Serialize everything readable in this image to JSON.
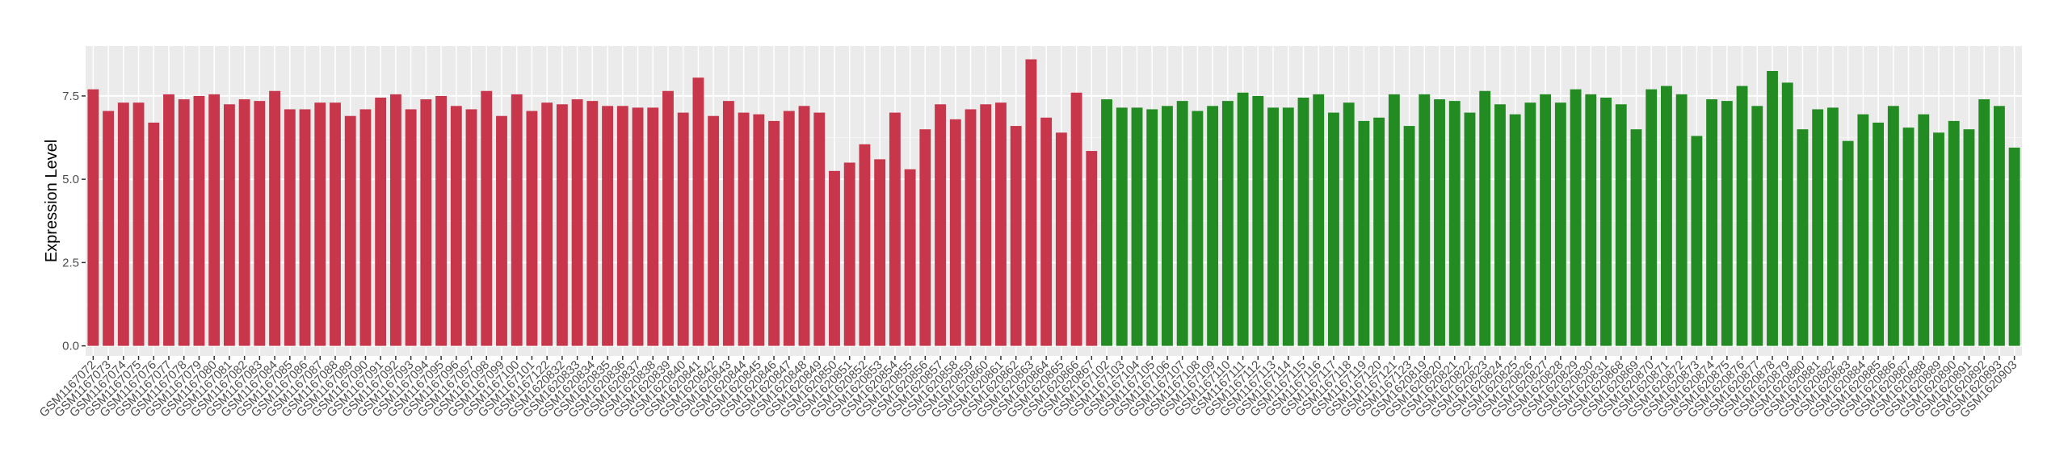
{
  "chart_data": {
    "type": "bar",
    "y_label": "Expression Level",
    "categories": [
      "GSM1167072",
      "GSM1167073",
      "GSM1167074",
      "GSM1167075",
      "GSM1167076",
      "GSM1167077",
      "GSM1167078",
      "GSM1167079",
      "GSM1167080",
      "GSM1167081",
      "GSM1167082",
      "GSM1167083",
      "GSM1167084",
      "GSM1167085",
      "GSM1167086",
      "GSM1167087",
      "GSM1167088",
      "GSM1167089",
      "GSM1167090",
      "GSM1167091",
      "GSM1167092",
      "GSM1167093",
      "GSM1167094",
      "GSM1167095",
      "GSM1167096",
      "GSM1167097",
      "GSM1167098",
      "GSM1167099",
      "GSM1167100",
      "GSM1167101",
      "GSM1167122",
      "GSM1620832",
      "GSM1620833",
      "GSM1620834",
      "GSM1620835",
      "GSM1620836",
      "GSM1620837",
      "GSM1620838",
      "GSM1620839",
      "GSM1620840",
      "GSM1620841",
      "GSM1620842",
      "GSM1620843",
      "GSM1620844",
      "GSM1620845",
      "GSM1620846",
      "GSM1620847",
      "GSM1620848",
      "GSM1620849",
      "GSM1620850",
      "GSM1620851",
      "GSM1620852",
      "GSM1620853",
      "GSM1620854",
      "GSM1620855",
      "GSM1620856",
      "GSM1620857",
      "GSM1620858",
      "GSM1620859",
      "GSM1620860",
      "GSM1620861",
      "GSM1620862",
      "GSM1620863",
      "GSM1620864",
      "GSM1620865",
      "GSM1620866",
      "GSM1620867",
      "GSM1167102",
      "GSM1167103",
      "GSM1167104",
      "GSM1167105",
      "GSM1167106",
      "GSM1167107",
      "GSM1167108",
      "GSM1167109",
      "GSM1167110",
      "GSM1167111",
      "GSM1167112",
      "GSM1167113",
      "GSM1167114",
      "GSM1167115",
      "GSM1167116",
      "GSM1167117",
      "GSM1167118",
      "GSM1167119",
      "GSM1167120",
      "GSM1167121",
      "GSM1167123",
      "GSM1620819",
      "GSM1620820",
      "GSM1620821",
      "GSM1620822",
      "GSM1620823",
      "GSM1620824",
      "GSM1620825",
      "GSM1620826",
      "GSM1620827",
      "GSM1620828",
      "GSM1620829",
      "GSM1620830",
      "GSM1620831",
      "GSM1620868",
      "GSM1620869",
      "GSM1620870",
      "GSM1620871",
      "GSM1620872",
      "GSM1620873",
      "GSM1620874",
      "GSM1620875",
      "GSM1620876",
      "GSM1620877",
      "GSM1620878",
      "GSM1620879",
      "GSM1620880",
      "GSM1620881",
      "GSM1620882",
      "GSM1620883",
      "GSM1620884",
      "GSM1620885",
      "GSM1620886",
      "GSM1620887",
      "GSM1620888",
      "GSM1620889",
      "GSM1620890",
      "GSM1620891",
      "GSM1620892",
      "GSM1620893",
      "GSM1620903"
    ],
    "values": [
      7.7,
      7.05,
      7.3,
      7.3,
      6.7,
      7.55,
      7.4,
      7.5,
      7.55,
      7.25,
      7.4,
      7.35,
      7.65,
      7.1,
      7.1,
      7.3,
      7.3,
      6.9,
      7.1,
      7.45,
      7.55,
      7.1,
      7.4,
      7.5,
      7.2,
      7.1,
      7.65,
      6.9,
      7.55,
      7.05,
      7.3,
      7.25,
      7.4,
      7.35,
      7.2,
      7.2,
      7.15,
      7.15,
      7.65,
      7.0,
      8.05,
      6.9,
      7.35,
      7.0,
      6.95,
      6.75,
      7.05,
      7.2,
      7.0,
      5.25,
      5.5,
      6.05,
      5.6,
      7.0,
      5.3,
      6.5,
      7.25,
      6.8,
      7.1,
      7.25,
      7.3,
      6.6,
      8.6,
      6.85,
      6.4,
      7.6,
      5.85,
      7.4,
      7.15,
      7.15,
      7.1,
      7.2,
      7.35,
      7.05,
      7.2,
      7.35,
      7.6,
      7.5,
      7.15,
      7.15,
      7.45,
      7.55,
      7.0,
      7.3,
      6.75,
      6.85,
      7.55,
      6.6,
      7.55,
      7.4,
      7.35,
      7.0,
      7.65,
      7.25,
      6.95,
      7.3,
      7.55,
      7.3,
      7.7,
      7.55,
      7.45,
      7.25,
      6.5,
      7.7,
      7.8,
      7.55,
      6.3,
      7.4,
      7.35,
      7.8,
      7.2,
      8.25,
      7.9,
      6.5,
      7.1,
      7.15,
      6.15,
      6.95,
      6.7,
      7.2,
      6.55,
      6.95,
      6.4,
      6.75,
      6.5,
      7.4,
      7.2,
      5.95
    ],
    "colors": [
      "#c8364b",
      "#c8364b",
      "#c8364b",
      "#c8364b",
      "#c8364b",
      "#c8364b",
      "#c8364b",
      "#c8364b",
      "#c8364b",
      "#c8364b",
      "#c8364b",
      "#c8364b",
      "#c8364b",
      "#c8364b",
      "#c8364b",
      "#c8364b",
      "#c8364b",
      "#c8364b",
      "#c8364b",
      "#c8364b",
      "#c8364b",
      "#c8364b",
      "#c8364b",
      "#c8364b",
      "#c8364b",
      "#c8364b",
      "#c8364b",
      "#c8364b",
      "#c8364b",
      "#c8364b",
      "#c8364b",
      "#c8364b",
      "#c8364b",
      "#c8364b",
      "#c8364b",
      "#c8364b",
      "#c8364b",
      "#c8364b",
      "#c8364b",
      "#c8364b",
      "#c8364b",
      "#c8364b",
      "#c8364b",
      "#c8364b",
      "#c8364b",
      "#c8364b",
      "#c8364b",
      "#c8364b",
      "#c8364b",
      "#c8364b",
      "#c8364b",
      "#c8364b",
      "#c8364b",
      "#c8364b",
      "#c8364b",
      "#c8364b",
      "#c8364b",
      "#c8364b",
      "#c8364b",
      "#c8364b",
      "#c8364b",
      "#c8364b",
      "#c8364b",
      "#c8364b",
      "#c8364b",
      "#c8364b",
      "#c8364b",
      "#228b22",
      "#228b22",
      "#228b22",
      "#228b22",
      "#228b22",
      "#228b22",
      "#228b22",
      "#228b22",
      "#228b22",
      "#228b22",
      "#228b22",
      "#228b22",
      "#228b22",
      "#228b22",
      "#228b22",
      "#228b22",
      "#228b22",
      "#228b22",
      "#228b22",
      "#228b22",
      "#228b22",
      "#228b22",
      "#228b22",
      "#228b22",
      "#228b22",
      "#228b22",
      "#228b22",
      "#228b22",
      "#228b22",
      "#228b22",
      "#228b22",
      "#228b22",
      "#228b22",
      "#228b22",
      "#228b22",
      "#228b22",
      "#228b22",
      "#228b22",
      "#228b22",
      "#228b22",
      "#228b22",
      "#228b22",
      "#228b22",
      "#228b22",
      "#228b22",
      "#228b22",
      "#228b22",
      "#228b22",
      "#228b22",
      "#228b22",
      "#228b22",
      "#228b22",
      "#228b22",
      "#228b22",
      "#228b22",
      "#228b22",
      "#228b22",
      "#228b22",
      "#228b22",
      "#228b22",
      "#228b22"
    ],
    "ylim": [
      -0.3,
      9.0
    ],
    "yticks": [
      {
        "value": 0,
        "label": "0.0"
      },
      {
        "value": 2.5,
        "label": "2.5"
      },
      {
        "value": 5,
        "label": "5.0"
      },
      {
        "value": 7.5,
        "label": "7.5"
      }
    ],
    "grid": true
  }
}
